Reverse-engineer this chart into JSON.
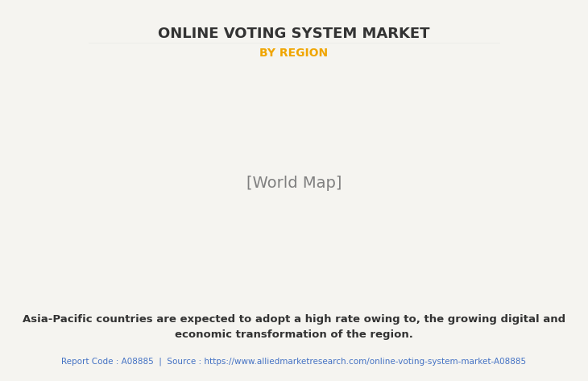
{
  "title": "ONLINE VOTING SYSTEM MARKET",
  "subtitle": "BY REGION",
  "title_color": "#333333",
  "subtitle_color": "#f0a500",
  "bg_color": "#f5f4f0",
  "body_text": "Asia-Pacific countries are expected to adopt a high rate owing to, the growing digital and\neconomic transformation of the region.",
  "footer_text": "Report Code : A08885  |  Source : https://www.alliedmarketresearch.com/online-voting-system-market-A08885",
  "body_text_color": "#333333",
  "footer_text_color": "#4472c4",
  "region_colors": {
    "north_america": "#7fc8a9",
    "latin_america": "#d4b96a",
    "europe": "#7fc8a9",
    "asia_pacific": "#7fc8a9",
    "middle_east_africa": "#d4b96a",
    "usa": "#f0ede8",
    "ocean": "#f5f4f0"
  },
  "map_shadow_color": "#888888",
  "country_border_color": "#a8c8e0"
}
